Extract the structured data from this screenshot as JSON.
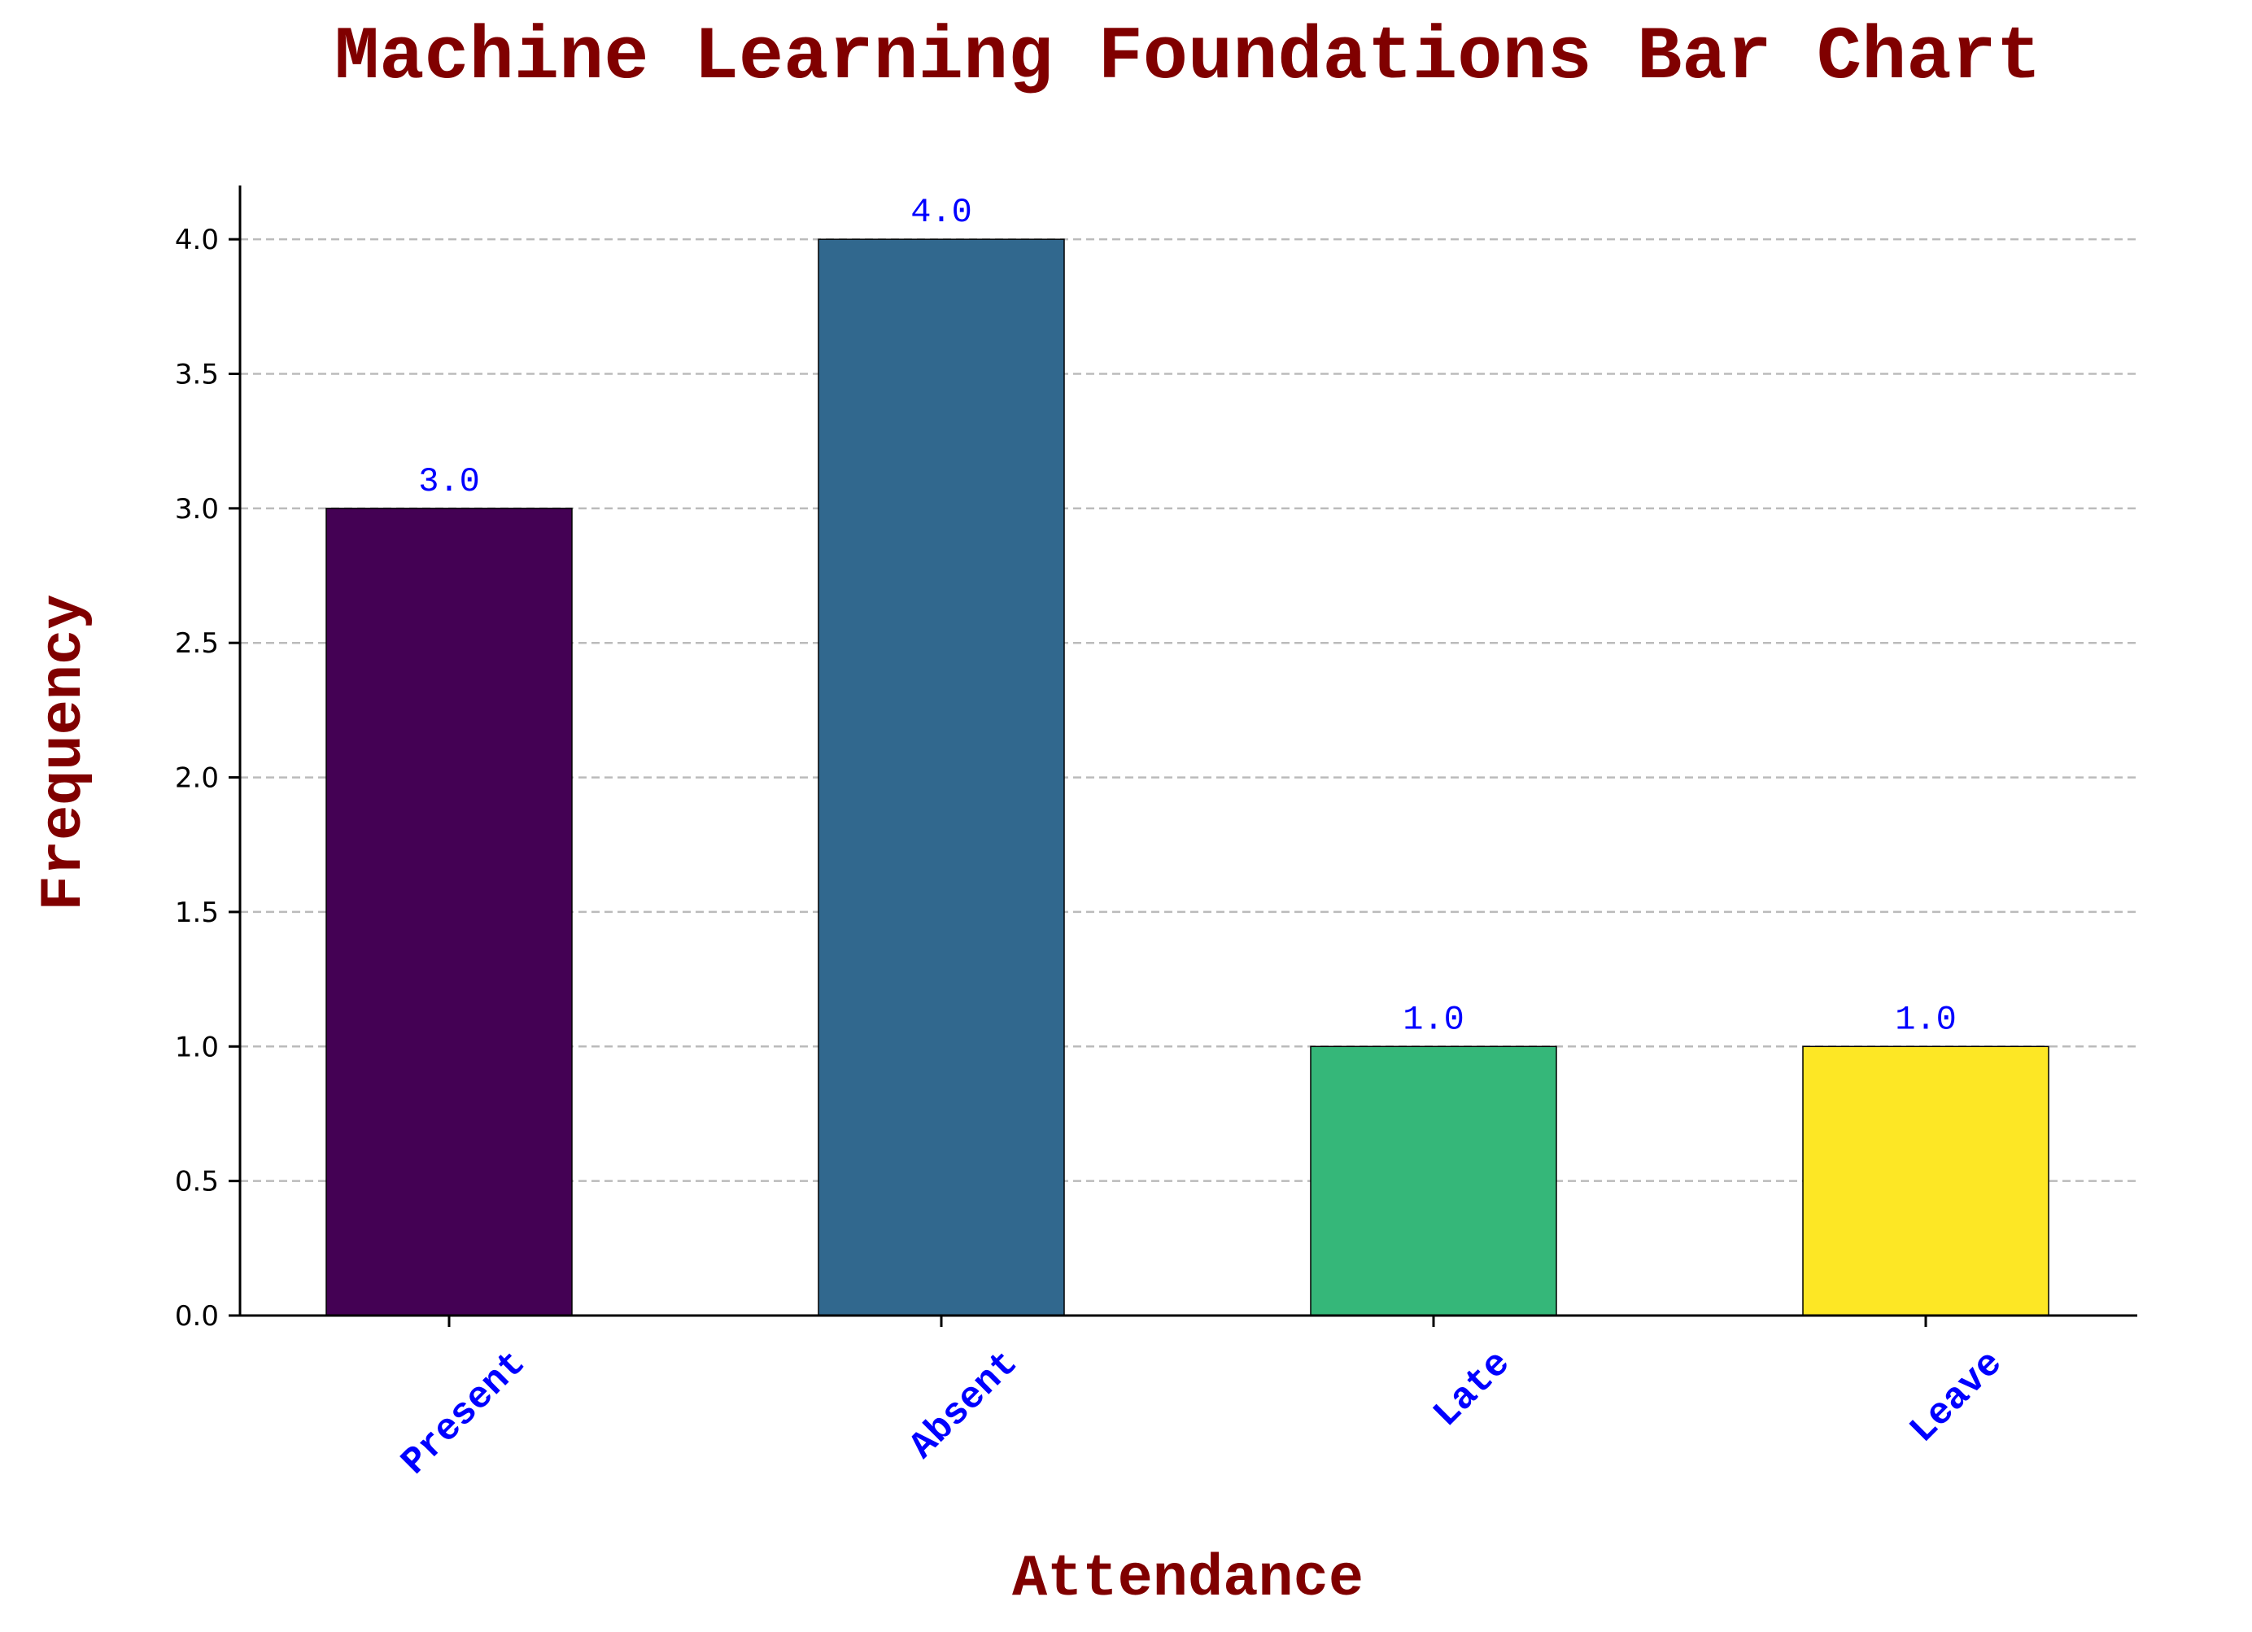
{
  "colors": {
    "title": "#800000",
    "tick_labels": "#0000ff",
    "value_labels": "#0000ff",
    "axis": "#000000",
    "grid": "#bbbbbb",
    "bar_edge": "#000000"
  },
  "chart_data": {
    "type": "bar",
    "title": "Machine Learning Foundations Bar Chart",
    "xlabel": "Attendance",
    "ylabel": "Frequency",
    "categories": [
      "Present",
      "Absent",
      "Late",
      "Leave"
    ],
    "values": [
      3.0,
      4.0,
      1.0,
      1.0
    ],
    "value_labels": [
      "3.0",
      "4.0",
      "1.0",
      "1.0"
    ],
    "bar_colors": [
      "#440154",
      "#31688e",
      "#35b779",
      "#fde725"
    ],
    "ylim": [
      0,
      4.2
    ],
    "yticks": [
      0.0,
      0.5,
      1.0,
      1.5,
      2.0,
      2.5,
      3.0,
      3.5,
      4.0
    ],
    "ytick_labels": [
      "0.0",
      "0.5",
      "1.0",
      "1.5",
      "2.0",
      "2.5",
      "3.0",
      "3.5",
      "4.0"
    ],
    "grid": "y-dashed",
    "legend": "none"
  }
}
